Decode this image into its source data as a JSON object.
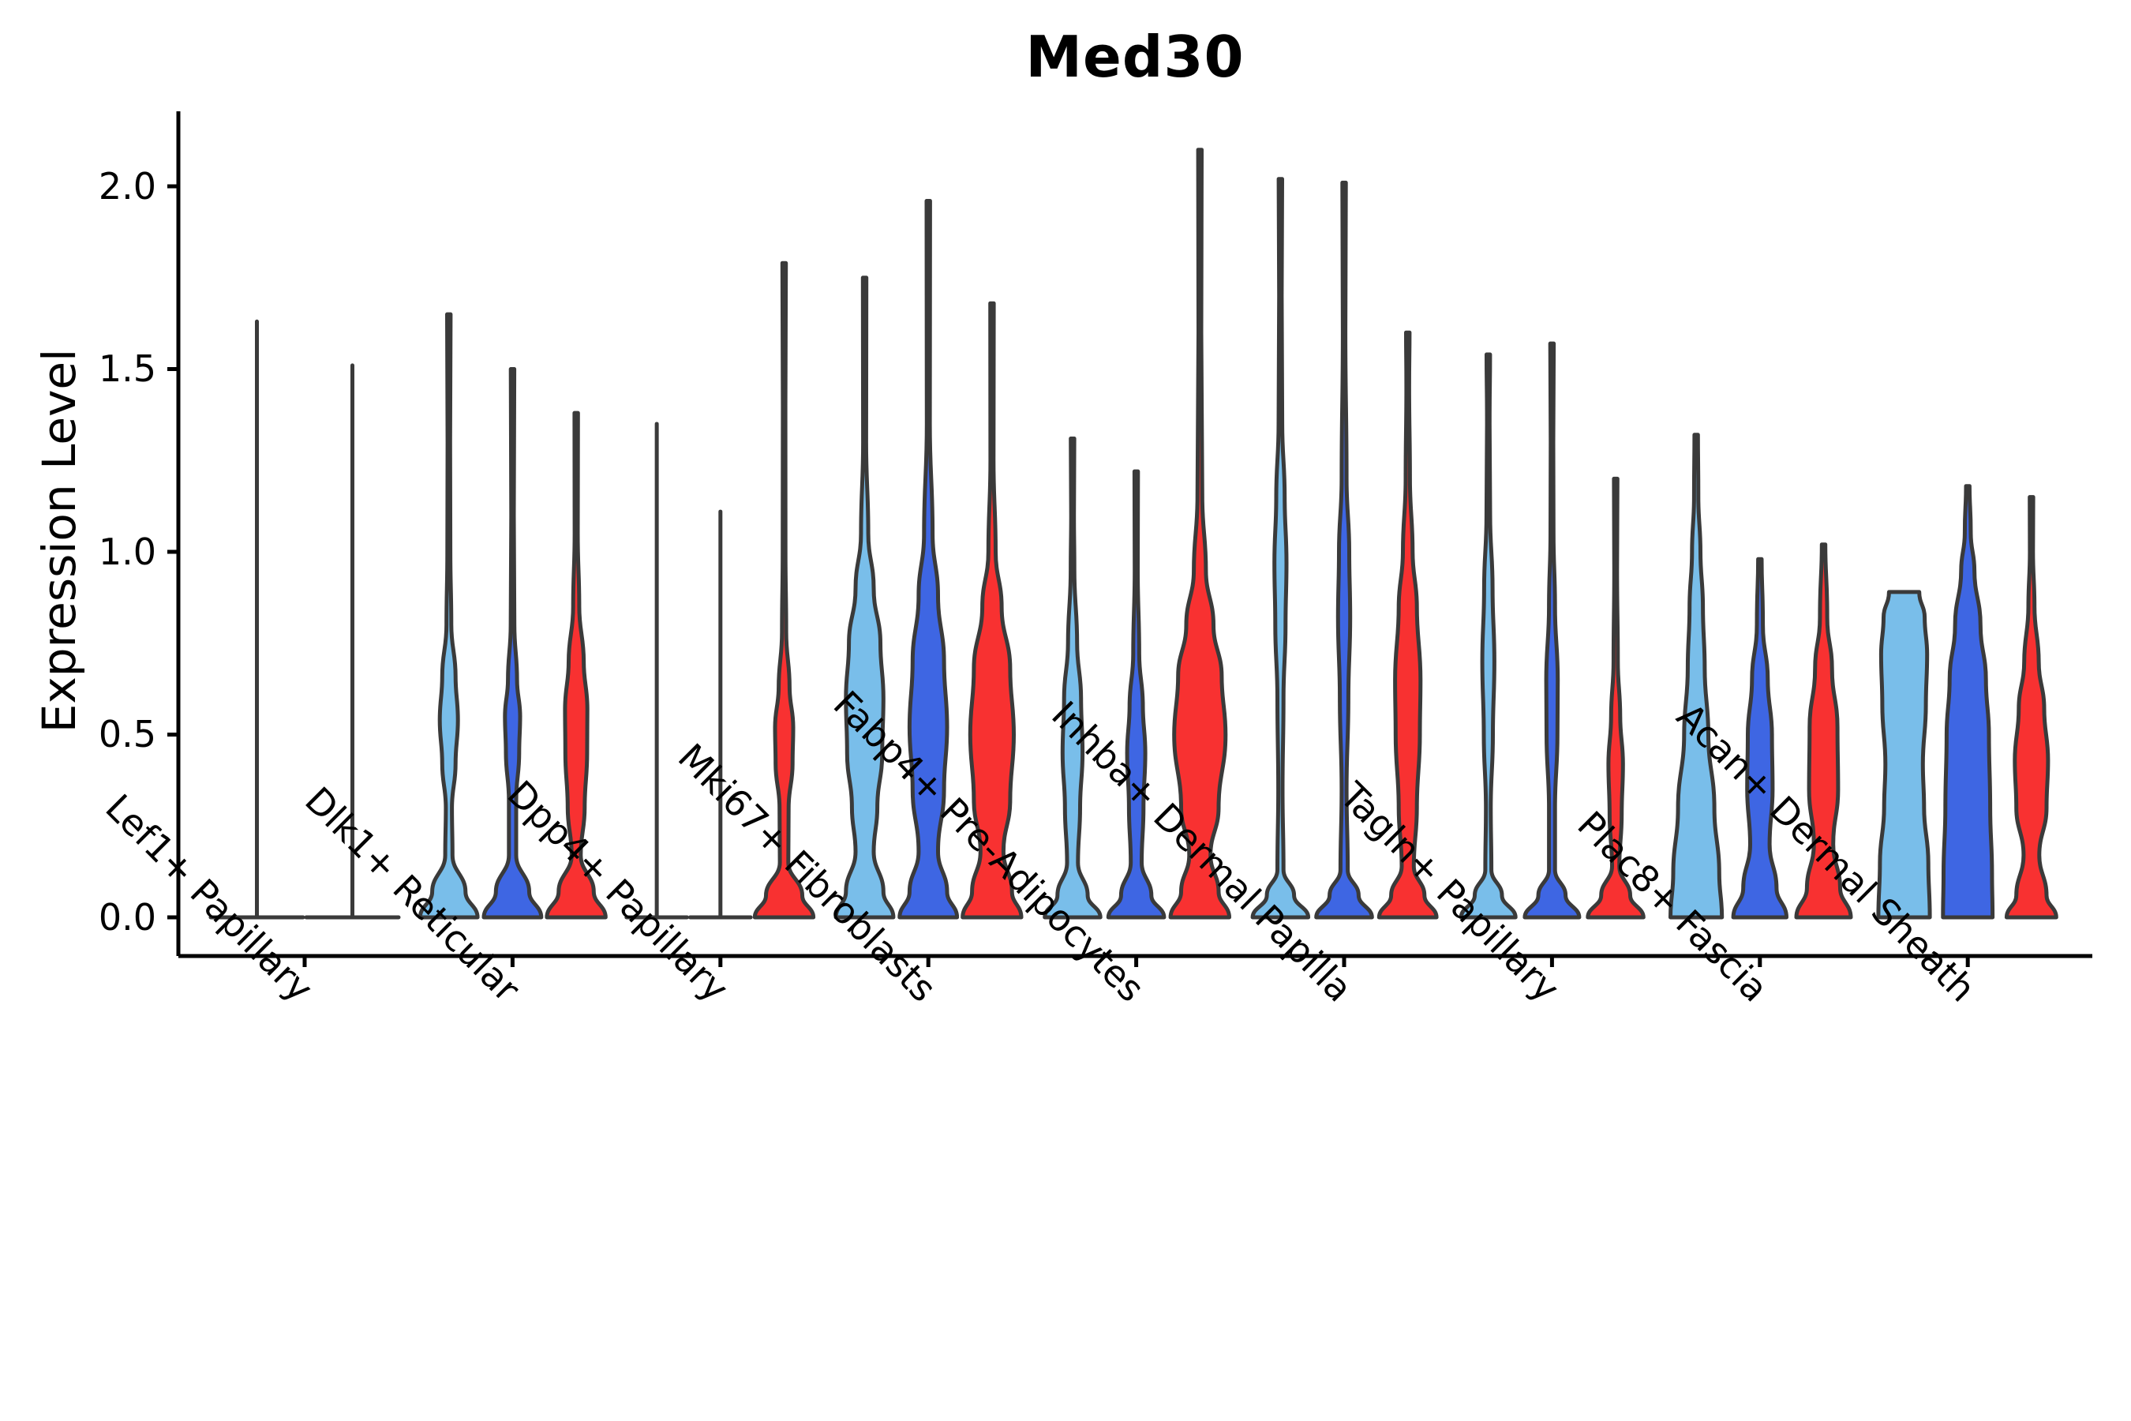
{
  "title": "Med30",
  "ylabel": "Expression Level",
  "colors": {
    "skyblue": "#79BEEA",
    "blue": "#3E66E3",
    "red": "#F83131",
    "outline": "#3A3A3A",
    "axis": "#000000",
    "text": "#000000"
  },
  "chart_data": {
    "type": "violin",
    "title": "Med30",
    "ylabel": "Expression Level",
    "ylim": [
      -0.11,
      2.21
    ],
    "grid": false,
    "legend": "none",
    "ytick_values": [
      0.0,
      0.5,
      1.0,
      1.5,
      2.0
    ],
    "ytick_labels": [
      "0.0",
      "0.5",
      "1.0",
      "1.5",
      "2.0"
    ],
    "categories": [
      "Lef1+ Papillary",
      "Dlk1+ Reticular",
      "Dpp4+ Papillary",
      "Mki67+ Fibroblasts",
      "Fabp4+ Pre-Adipocytes",
      "Inhba+ Dermal Papilla",
      "Tagln+ Papillary",
      "Plac8+ Fascia",
      "Acan+ Dermal Sheath"
    ],
    "series_colors": [
      "#79BEEA",
      "#3E66E3",
      "#F83131"
    ],
    "groups": [
      {
        "category": "Lef1+ Papillary",
        "violins": [
          {
            "color": "skyblue",
            "max": 1.63,
            "flat": true
          },
          {
            "color": "blue",
            "max": 1.51,
            "flat": true
          }
        ]
      },
      {
        "category": "Dlk1+ Reticular",
        "violins": [
          {
            "color": "skyblue",
            "max": 1.65,
            "profile": [
              [
                0,
                0.95
              ],
              [
                0.07,
                0.55
              ],
              [
                0.17,
                0.12
              ],
              [
                0.3,
                0.1
              ],
              [
                0.42,
                0.22
              ],
              [
                0.54,
                0.3
              ],
              [
                0.66,
                0.22
              ],
              [
                0.8,
                0.08
              ],
              [
                1.0,
                0.05
              ],
              [
                1.3,
                0.04
              ]
            ]
          },
          {
            "color": "blue",
            "max": 1.5,
            "profile": [
              [
                0,
                0.95
              ],
              [
                0.07,
                0.55
              ],
              [
                0.17,
                0.12
              ],
              [
                0.32,
                0.12
              ],
              [
                0.45,
                0.22
              ],
              [
                0.55,
                0.25
              ],
              [
                0.65,
                0.15
              ],
              [
                0.8,
                0.06
              ],
              [
                1.1,
                0.04
              ]
            ]
          },
          {
            "color": "red",
            "max": 1.38,
            "profile": [
              [
                0,
                0.97
              ],
              [
                0.07,
                0.58
              ],
              [
                0.17,
                0.15
              ],
              [
                0.3,
                0.28
              ],
              [
                0.45,
                0.36
              ],
              [
                0.57,
                0.37
              ],
              [
                0.7,
                0.25
              ],
              [
                0.85,
                0.1
              ],
              [
                1.05,
                0.05
              ]
            ]
          }
        ]
      },
      {
        "category": "Dpp4+ Papillary",
        "violins": [
          {
            "color": "skyblue",
            "max": 1.35,
            "flat": true
          },
          {
            "color": "blue",
            "max": 1.11,
            "flat": true
          },
          {
            "color": "red",
            "max": 1.79,
            "profile": [
              [
                0,
                0.97
              ],
              [
                0.06,
                0.6
              ],
              [
                0.15,
                0.14
              ],
              [
                0.3,
                0.15
              ],
              [
                0.42,
                0.28
              ],
              [
                0.52,
                0.3
              ],
              [
                0.63,
                0.18
              ],
              [
                0.78,
                0.07
              ],
              [
                1.0,
                0.045
              ],
              [
                1.4,
                0.04
              ]
            ]
          }
        ]
      },
      {
        "category": "Mki67+ Fibroblasts",
        "violins": [
          {
            "color": "skyblue",
            "max": 1.75,
            "profile": [
              [
                0,
                0.95
              ],
              [
                0.07,
                0.62
              ],
              [
                0.18,
                0.3
              ],
              [
                0.3,
                0.42
              ],
              [
                0.45,
                0.58
              ],
              [
                0.6,
                0.62
              ],
              [
                0.75,
                0.52
              ],
              [
                0.9,
                0.3
              ],
              [
                1.05,
                0.12
              ],
              [
                1.3,
                0.05
              ]
            ]
          },
          {
            "color": "blue",
            "max": 1.96,
            "profile": [
              [
                0,
                0.95
              ],
              [
                0.07,
                0.62
              ],
              [
                0.18,
                0.32
              ],
              [
                0.35,
                0.52
              ],
              [
                0.52,
                0.62
              ],
              [
                0.7,
                0.52
              ],
              [
                0.88,
                0.32
              ],
              [
                1.05,
                0.14
              ],
              [
                1.35,
                0.05
              ]
            ]
          },
          {
            "color": "red",
            "max": 1.68,
            "profile": [
              [
                0,
                0.97
              ],
              [
                0.07,
                0.66
              ],
              [
                0.18,
                0.38
              ],
              [
                0.32,
                0.6
              ],
              [
                0.5,
                0.72
              ],
              [
                0.68,
                0.6
              ],
              [
                0.85,
                0.32
              ],
              [
                1.0,
                0.12
              ],
              [
                1.25,
                0.05
              ]
            ]
          }
        ]
      },
      {
        "category": "Fabp4+ Pre-Adipocytes",
        "violins": [
          {
            "color": "skyblue",
            "max": 1.31,
            "profile": [
              [
                0,
                0.92
              ],
              [
                0.06,
                0.5
              ],
              [
                0.15,
                0.18
              ],
              [
                0.3,
                0.25
              ],
              [
                0.45,
                0.33
              ],
              [
                0.6,
                0.28
              ],
              [
                0.75,
                0.15
              ],
              [
                0.95,
                0.06
              ],
              [
                1.1,
                0.045
              ]
            ]
          },
          {
            "color": "blue",
            "max": 1.22,
            "profile": [
              [
                0,
                0.92
              ],
              [
                0.06,
                0.5
              ],
              [
                0.15,
                0.18
              ],
              [
                0.3,
                0.24
              ],
              [
                0.45,
                0.3
              ],
              [
                0.58,
                0.22
              ],
              [
                0.72,
                0.1
              ],
              [
                0.95,
                0.05
              ]
            ]
          },
          {
            "color": "red",
            "max": 2.1,
            "profile": [
              [
                0,
                0.97
              ],
              [
                0.07,
                0.62
              ],
              [
                0.17,
                0.35
              ],
              [
                0.3,
                0.62
              ],
              [
                0.5,
                0.85
              ],
              [
                0.66,
                0.72
              ],
              [
                0.8,
                0.45
              ],
              [
                0.95,
                0.2
              ],
              [
                1.15,
                0.08
              ],
              [
                1.6,
                0.045
              ]
            ]
          }
        ]
      },
      {
        "category": "Inhba+ Dermal Papilla",
        "violins": [
          {
            "color": "skyblue",
            "max": 2.02,
            "profile": [
              [
                0,
                0.92
              ],
              [
                0.06,
                0.45
              ],
              [
                0.13,
                0.1
              ],
              [
                0.35,
                0.07
              ],
              [
                0.6,
                0.1
              ],
              [
                0.8,
                0.17
              ],
              [
                0.97,
                0.2
              ],
              [
                1.15,
                0.14
              ],
              [
                1.35,
                0.06
              ],
              [
                1.7,
                0.04
              ]
            ]
          },
          {
            "color": "blue",
            "max": 2.01,
            "profile": [
              [
                0,
                0.92
              ],
              [
                0.06,
                0.48
              ],
              [
                0.13,
                0.12
              ],
              [
                0.35,
                0.08
              ],
              [
                0.6,
                0.14
              ],
              [
                0.82,
                0.2
              ],
              [
                1.0,
                0.17
              ],
              [
                1.2,
                0.08
              ],
              [
                1.6,
                0.04
              ]
            ]
          },
          {
            "color": "red",
            "max": 1.6,
            "profile": [
              [
                0,
                0.95
              ],
              [
                0.06,
                0.55
              ],
              [
                0.14,
                0.2
              ],
              [
                0.3,
                0.3
              ],
              [
                0.5,
                0.4
              ],
              [
                0.65,
                0.42
              ],
              [
                0.85,
                0.3
              ],
              [
                1.0,
                0.16
              ],
              [
                1.2,
                0.07
              ],
              [
                1.45,
                0.045
              ]
            ]
          }
        ]
      },
      {
        "category": "Tagln+ Papillary",
        "violins": [
          {
            "color": "skyblue",
            "max": 1.54,
            "profile": [
              [
                0,
                0.9
              ],
              [
                0.06,
                0.45
              ],
              [
                0.13,
                0.1
              ],
              [
                0.3,
                0.08
              ],
              [
                0.5,
                0.15
              ],
              [
                0.7,
                0.2
              ],
              [
                0.9,
                0.14
              ],
              [
                1.1,
                0.06
              ],
              [
                1.35,
                0.04
              ]
            ]
          },
          {
            "color": "blue",
            "max": 1.57,
            "profile": [
              [
                0,
                0.9
              ],
              [
                0.06,
                0.45
              ],
              [
                0.13,
                0.1
              ],
              [
                0.3,
                0.1
              ],
              [
                0.5,
                0.18
              ],
              [
                0.65,
                0.19
              ],
              [
                0.85,
                0.1
              ],
              [
                1.05,
                0.05
              ],
              [
                1.3,
                0.04
              ]
            ]
          },
          {
            "color": "red",
            "max": 1.2,
            "profile": [
              [
                0,
                0.92
              ],
              [
                0.06,
                0.48
              ],
              [
                0.14,
                0.12
              ],
              [
                0.28,
                0.2
              ],
              [
                0.42,
                0.24
              ],
              [
                0.55,
                0.15
              ],
              [
                0.7,
                0.07
              ],
              [
                0.95,
                0.045
              ]
            ]
          }
        ]
      },
      {
        "category": "Plac8+ Fascia",
        "violins": [
          {
            "color": "skyblue",
            "max": 1.32,
            "profile": [
              [
                0,
                0.85
              ],
              [
                0.12,
                0.76
              ],
              [
                0.3,
                0.6
              ],
              [
                0.5,
                0.4
              ],
              [
                0.68,
                0.28
              ],
              [
                0.85,
                0.22
              ],
              [
                1.0,
                0.14
              ],
              [
                1.15,
                0.07
              ]
            ]
          },
          {
            "color": "blue",
            "max": 0.98,
            "profile": [
              [
                0,
                0.88
              ],
              [
                0.08,
                0.55
              ],
              [
                0.2,
                0.32
              ],
              [
                0.35,
                0.42
              ],
              [
                0.5,
                0.4
              ],
              [
                0.65,
                0.26
              ],
              [
                0.8,
                0.1
              ]
            ]
          },
          {
            "color": "red",
            "max": 1.02,
            "profile": [
              [
                0,
                0.9
              ],
              [
                0.08,
                0.55
              ],
              [
                0.2,
                0.32
              ],
              [
                0.35,
                0.48
              ],
              [
                0.52,
                0.46
              ],
              [
                0.68,
                0.28
              ],
              [
                0.82,
                0.12
              ]
            ]
          }
        ]
      },
      {
        "category": "Acan+ Dermal Sheath",
        "violins": [
          {
            "color": "skyblue",
            "max": 0.89,
            "flat_top": true,
            "profile": [
              [
                0,
                0.85
              ],
              [
                0.15,
                0.8
              ],
              [
                0.3,
                0.66
              ],
              [
                0.42,
                0.62
              ],
              [
                0.58,
                0.72
              ],
              [
                0.72,
                0.76
              ],
              [
                0.82,
                0.68
              ],
              [
                0.89,
                0.5
              ]
            ]
          },
          {
            "color": "blue",
            "max": 1.18,
            "profile": [
              [
                0,
                0.82
              ],
              [
                0.12,
                0.8
              ],
              [
                0.3,
                0.74
              ],
              [
                0.5,
                0.7
              ],
              [
                0.65,
                0.6
              ],
              [
                0.8,
                0.42
              ],
              [
                0.95,
                0.22
              ],
              [
                1.05,
                0.1
              ]
            ]
          },
          {
            "color": "red",
            "max": 1.15,
            "profile": [
              [
                0,
                0.82
              ],
              [
                0.06,
                0.5
              ],
              [
                0.17,
                0.26
              ],
              [
                0.3,
                0.5
              ],
              [
                0.43,
                0.55
              ],
              [
                0.57,
                0.42
              ],
              [
                0.7,
                0.24
              ],
              [
                0.85,
                0.1
              ],
              [
                1.0,
                0.05
              ]
            ]
          }
        ]
      }
    ]
  }
}
